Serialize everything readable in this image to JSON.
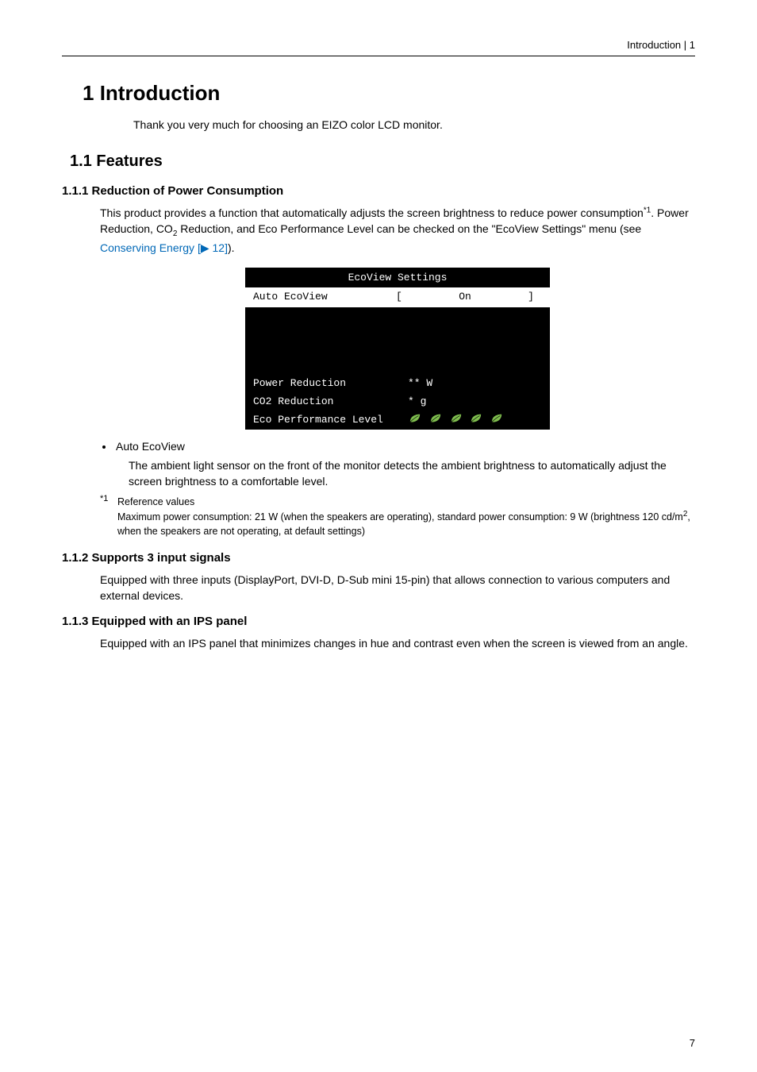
{
  "running_head": "Introduction | 1",
  "chapter": {
    "num": "1",
    "title": "Introduction"
  },
  "chapter_intro": "Thank you very much for choosing an EIZO color LCD monitor.",
  "section": {
    "num": "1.1",
    "title": "Features"
  },
  "sub1": {
    "num": "1.1.1",
    "title": "Reduction of Power Consumption",
    "para_before_sup": "This product provides a function that automatically adjusts the screen brightness to reduce power consumption",
    "sup": "*1",
    "para_mid1": ". Power Reduction, CO",
    "co2_sub": "2",
    "para_mid2": " Reduction, and Eco Performance Level can be checked on the \"EcoView Settings\" menu (see ",
    "link_text": "Conserving Energy [▶ 12]",
    "para_after_link": ")."
  },
  "osd": {
    "title": "EcoView Settings",
    "row1_label": "Auto EcoView",
    "row1_value": "On",
    "row2_label": "Power Reduction",
    "row2_value": "** W",
    "row3_label": "CO2 Reduction",
    "row3_value": " * g",
    "row4_label": "Eco Performance Level",
    "leaf_count": 5,
    "leaf_color": "#7fbe4e"
  },
  "bullet": {
    "title": "Auto EcoView",
    "desc": "The ambient light sensor on the front of the monitor detects the ambient brightness to automatically adjust the screen brightness to a comfortable level."
  },
  "footnote": {
    "marker": "*1",
    "line1": "Reference values",
    "line2_a": "Maximum power consumption: 21 W (when the speakers are operating), standard power consumption: 9 W (brightness 120 cd/m",
    "line2_sup": "2",
    "line2_b": ", when the speakers are not operating, at default settings)"
  },
  "sub2": {
    "num": "1.1.2",
    "title": "Supports 3 input signals",
    "para": "Equipped with three inputs (DisplayPort, DVI-D, D-Sub mini 15-pin) that allows connection to various computers and external devices."
  },
  "sub3": {
    "num": "1.1.3",
    "title": "Equipped with an IPS panel",
    "para": "Equipped with an IPS panel that minimizes changes in hue and contrast even when the screen is viewed from an angle."
  },
  "page_number": "7"
}
